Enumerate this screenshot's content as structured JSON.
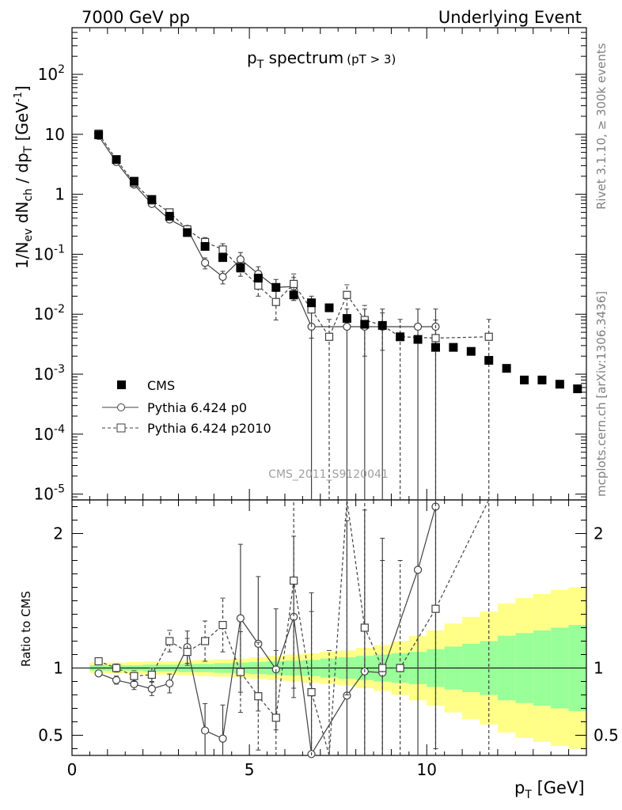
{
  "header": {
    "left": "7000 GeV pp",
    "right": "Underlying Event"
  },
  "side_text": {
    "rivet": "Rivet 3.1.10, ≥ 300k events",
    "mcplots": "mcplots.cern.ch [arXiv:1306.3436]"
  },
  "watermark": "CMS_2011_S9120041",
  "title": {
    "main_p": "p",
    "main_sub": "T",
    "main_rest": " spectrum",
    "small": "(pT >  3)"
  },
  "axes": {
    "ylabel_top": "1/N_ev dN_ch / dp_T [GeV^-1]",
    "ylabel_bottom": "Ratio to CMS",
    "xlabel": "p_T [GeV]"
  },
  "legend": [
    {
      "name": "CMS",
      "marker": "filled-square",
      "line": "none"
    },
    {
      "name": "Pythia 6.424 p0",
      "marker": "open-circle",
      "line": "solid"
    },
    {
      "name": "Pythia 6.424 p2010",
      "marker": "open-square",
      "line": "dashed"
    }
  ],
  "colors": {
    "data": "#000000",
    "mc_line": "#404040",
    "band_inner": "#99ff99",
    "band_outer": "#ffff88"
  },
  "chart_data": {
    "type": "scatter",
    "xlim": [
      0,
      14.5
    ],
    "main": {
      "yscale": "log",
      "ylim": [
        8e-06,
        600
      ],
      "yticks": [
        {
          "v": 1e-05,
          "t": "10^-5"
        },
        {
          "v": 0.0001,
          "t": "10^-4"
        },
        {
          "v": 0.001,
          "t": "10^-3"
        },
        {
          "v": 0.01,
          "t": "10^-2"
        },
        {
          "v": 0.1,
          "t": "10^-1"
        },
        {
          "v": 1,
          "t": "1"
        },
        {
          "v": 10,
          "t": "10"
        },
        {
          "v": 100,
          "t": "10^2"
        }
      ]
    },
    "ratio": {
      "yscale": "linear",
      "ylim": [
        0.35,
        2.25
      ],
      "yticks": [
        0.5,
        1,
        2
      ]
    },
    "xticks": [
      0,
      5,
      10
    ],
    "series": [
      {
        "name": "CMS",
        "x": [
          0.75,
          1.25,
          1.75,
          2.25,
          2.75,
          3.25,
          3.75,
          4.25,
          4.75,
          5.25,
          5.75,
          6.25,
          6.75,
          7.25,
          7.75,
          8.25,
          8.75,
          9.25,
          9.75,
          10.25,
          10.75,
          11.25,
          11.75,
          12.25,
          12.75,
          13.25,
          13.75,
          14.25
        ],
        "y": [
          9.8,
          3.8,
          1.65,
          0.82,
          0.43,
          0.23,
          0.135,
          0.088,
          0.06,
          0.04,
          0.028,
          0.021,
          0.0155,
          0.0128,
          0.0085,
          0.0068,
          0.0065,
          0.0042,
          0.0038,
          0.0028,
          0.0028,
          0.0024,
          0.0017,
          0.00125,
          0.0008,
          0.0008,
          0.00068,
          0.00057
        ]
      },
      {
        "name": "Pythia 6.424 p0",
        "x": [
          0.75,
          1.25,
          1.75,
          2.25,
          2.75,
          3.25,
          3.75,
          4.25,
          4.75,
          5.25,
          5.75,
          6.25,
          6.75,
          7.75,
          8.25,
          8.75,
          9.75,
          10.25
        ],
        "y": [
          9.4,
          3.45,
          1.45,
          0.69,
          0.38,
          0.265,
          0.072,
          0.042,
          0.082,
          0.047,
          0.028,
          0.029,
          0.0062,
          0.0062,
          0.0062,
          0.0062,
          0.0062,
          0.0062
        ],
        "err_lo": [
          0.2,
          0.1,
          0.05,
          0.04,
          0.03,
          0.03,
          0.015,
          0.01,
          0.025,
          0.015,
          0.01,
          0.012,
          0.0062,
          0.0062,
          0.0062,
          0.0062,
          0.0062,
          0.0062
        ],
        "err_hi": [
          0.2,
          0.1,
          0.05,
          0.04,
          0.03,
          0.03,
          0.015,
          0.01,
          0.025,
          0.015,
          0.01,
          0.012,
          0.006,
          0.006,
          0.006,
          0.006,
          0.006,
          0.006
        ],
        "ratio": [
          0.96,
          0.91,
          0.88,
          0.845,
          0.885,
          1.155,
          0.535,
          0.475,
          1.37,
          1.18,
          0.99,
          1.38,
          0.36,
          0.795,
          0.975,
          0.965,
          1.73,
          2.2
        ],
        "ratio_err": [
          0.02,
          0.03,
          0.04,
          0.05,
          0.07,
          0.12,
          0.2,
          0.25,
          0.55,
          0.5,
          0.45,
          0.6,
          1.2,
          1.3,
          1.2,
          1.0,
          1.5,
          1.8
        ]
      },
      {
        "name": "Pythia 6.424 p2010",
        "x": [
          0.75,
          1.25,
          1.75,
          2.25,
          2.75,
          3.25,
          3.75,
          4.25,
          4.75,
          5.25,
          5.75,
          6.25,
          6.75,
          7.25,
          7.75,
          8.25,
          8.75,
          9.25,
          10.25,
          11.75
        ],
        "y": [
          10.3,
          3.8,
          1.55,
          0.79,
          0.5,
          0.26,
          0.16,
          0.12,
          0.058,
          0.03,
          0.016,
          0.032,
          0.012,
          0.0042,
          0.021,
          0.008,
          0.0065,
          0.0042,
          0.004,
          0.0042
        ],
        "err_lo": [
          0.2,
          0.1,
          0.05,
          0.04,
          0.04,
          0.03,
          0.03,
          0.03,
          0.015,
          0.01,
          0.008,
          0.015,
          0.008,
          0.0042,
          0.012,
          0.006,
          0.004,
          0.0042,
          0.004,
          0.0042
        ],
        "err_hi": [
          0.2,
          0.1,
          0.05,
          0.04,
          0.04,
          0.03,
          0.03,
          0.03,
          0.015,
          0.01,
          0.008,
          0.015,
          0.008,
          0.004,
          0.01,
          0.006,
          0.004,
          0.004,
          0.004,
          0.004
        ],
        "ratio": [
          1.05,
          1.0,
          0.94,
          0.95,
          1.2,
          1.12,
          1.2,
          1.32,
          0.97,
          0.79,
          0.63,
          1.65,
          0.82,
          0.33,
          2.3,
          1.3,
          1.0,
          1.0,
          1.44,
          2.3
        ],
        "ratio_err": [
          0.02,
          0.03,
          0.04,
          0.05,
          0.08,
          0.1,
          0.15,
          0.2,
          0.3,
          0.4,
          0.5,
          0.8,
          0.6,
          0.8,
          1.5,
          1.2,
          0.8,
          0.8,
          1.3,
          2.0
        ]
      }
    ],
    "uncertainty_band": {
      "x_edges": [
        0.5,
        1.0,
        1.5,
        2.0,
        2.5,
        3.0,
        3.5,
        4.0,
        4.5,
        5.0,
        5.5,
        6.0,
        6.5,
        7.0,
        7.5,
        8.0,
        8.5,
        9.0,
        9.5,
        10.0,
        10.5,
        11.0,
        11.5,
        12.0,
        12.5,
        13.0,
        13.5,
        14.0,
        14.5
      ],
      "inner": [
        0.02,
        0.02,
        0.02,
        0.025,
        0.025,
        0.03,
        0.03,
        0.035,
        0.04,
        0.045,
        0.05,
        0.055,
        0.06,
        0.07,
        0.08,
        0.09,
        0.1,
        0.11,
        0.12,
        0.14,
        0.16,
        0.18,
        0.2,
        0.24,
        0.26,
        0.28,
        0.3,
        0.32
      ],
      "outer": [
        0.04,
        0.04,
        0.045,
        0.05,
        0.05,
        0.055,
        0.06,
        0.065,
        0.07,
        0.08,
        0.09,
        0.1,
        0.11,
        0.12,
        0.13,
        0.15,
        0.17,
        0.2,
        0.24,
        0.28,
        0.33,
        0.38,
        0.42,
        0.48,
        0.52,
        0.55,
        0.58,
        0.6
      ]
    }
  }
}
